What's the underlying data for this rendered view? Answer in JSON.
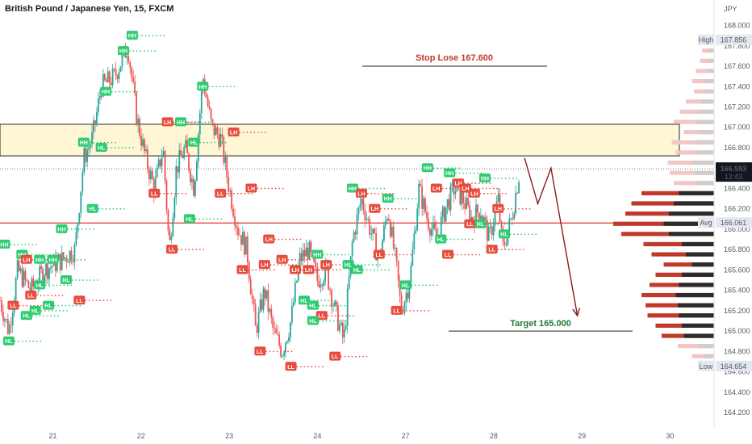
{
  "header": {
    "title": "British Pound / Japanese Yen, 15, FXCM"
  },
  "axis": {
    "currency": "JPY"
  },
  "price_badge": {
    "price": "166.593",
    "countdown": "12:43"
  },
  "high_badge": {
    "label": "High",
    "value": "167.856"
  },
  "low_badge": {
    "label": "Low",
    "value": "164.654"
  },
  "avg_badge": {
    "label": "Avg",
    "value": "166.061"
  },
  "annotations": {
    "stop_loss": "Stop Lose 167.600",
    "target": "Target 165.000"
  },
  "colors": {
    "up": "#26a69a",
    "down": "#ef5350",
    "hh_hl": "#2ecc71",
    "lh_ll": "#e74c3c",
    "zone_fill": "#fff6d5",
    "stop_line": "#c0392b",
    "target_text": "#1e7b34",
    "arrow": "#8b1a1a",
    "vp_dark": "#2b2b2b",
    "vp_red": "#c0392b",
    "vp_light": "#f3c6c6",
    "vp_gray": "#cccccc"
  },
  "chart_data": {
    "type": "candlestick",
    "symbol": "GBP/JPY",
    "timeframe": "15",
    "ylim": [
      164.05,
      168.25
    ],
    "y_ticks": [
      164.2,
      164.4,
      164.6,
      164.8,
      165.0,
      165.2,
      165.4,
      165.6,
      165.8,
      166.0,
      166.2,
      166.4,
      166.6,
      166.8,
      167.0,
      167.2,
      167.4,
      167.6,
      167.8,
      168.0
    ],
    "x_ticks": [
      "21",
      "22",
      "23",
      "24",
      "27",
      "28",
      "29",
      "30"
    ],
    "x_tick_days": [
      0.6,
      1.6,
      2.6,
      3.6,
      4.6,
      5.6,
      6.6,
      7.6
    ],
    "x_range_days": [
      0,
      8.1
    ],
    "price_path": [
      [
        0.0,
        165.3
      ],
      [
        0.1,
        165.0
      ],
      [
        0.2,
        165.6
      ],
      [
        0.35,
        165.4
      ],
      [
        0.5,
        165.6
      ],
      [
        0.7,
        165.7
      ],
      [
        0.85,
        165.8
      ],
      [
        0.95,
        166.7
      ],
      [
        1.05,
        166.9
      ],
      [
        1.15,
        167.4
      ],
      [
        1.3,
        167.5
      ],
      [
        1.45,
        167.8
      ],
      [
        1.55,
        167.1
      ],
      [
        1.65,
        166.7
      ],
      [
        1.75,
        166.4
      ],
      [
        1.85,
        166.8
      ],
      [
        1.92,
        165.8
      ],
      [
        2.0,
        166.6
      ],
      [
        2.1,
        166.8
      ],
      [
        2.2,
        166.4
      ],
      [
        2.3,
        167.5
      ],
      [
        2.4,
        167.0
      ],
      [
        2.5,
        166.9
      ],
      [
        2.6,
        166.4
      ],
      [
        2.7,
        166.0
      ],
      [
        2.8,
        165.8
      ],
      [
        2.9,
        165.0
      ],
      [
        3.0,
        165.4
      ],
      [
        3.1,
        165.0
      ],
      [
        3.2,
        164.8
      ],
      [
        3.3,
        165.1
      ],
      [
        3.4,
        165.7
      ],
      [
        3.5,
        165.8
      ],
      [
        3.6,
        165.5
      ],
      [
        3.7,
        165.6
      ],
      [
        3.8,
        165.2
      ],
      [
        3.9,
        164.9
      ],
      [
        4.0,
        165.9
      ],
      [
        4.1,
        166.3
      ],
      [
        4.2,
        166.0
      ],
      [
        4.3,
        165.7
      ],
      [
        4.4,
        166.2
      ],
      [
        4.5,
        165.6
      ],
      [
        4.55,
        165.2
      ],
      [
        4.65,
        165.5
      ],
      [
        4.75,
        166.4
      ],
      [
        4.85,
        166.1
      ],
      [
        4.95,
        165.9
      ],
      [
        5.05,
        166.2
      ],
      [
        5.15,
        166.4
      ],
      [
        5.25,
        166.3
      ],
      [
        5.35,
        166.1
      ],
      [
        5.45,
        166.2
      ],
      [
        5.55,
        165.9
      ],
      [
        5.65,
        166.3
      ],
      [
        5.7,
        165.8
      ],
      [
        5.8,
        166.1
      ],
      [
        5.9,
        166.6
      ]
    ],
    "projection": [
      [
        5.95,
        166.7
      ],
      [
        6.1,
        166.25
      ],
      [
        6.25,
        166.6
      ],
      [
        6.55,
        165.15
      ]
    ],
    "swing_labels": [
      {
        "t": "HH",
        "d": 0.05,
        "p": 165.85
      },
      {
        "t": "HL",
        "d": 0.1,
        "p": 164.9
      },
      {
        "t": "HH",
        "d": 0.25,
        "p": 165.75
      },
      {
        "t": "LL",
        "d": 0.15,
        "p": 165.25
      },
      {
        "t": "LH",
        "d": 0.3,
        "p": 165.7
      },
      {
        "t": "HL",
        "d": 0.3,
        "p": 165.15
      },
      {
        "t": "LL",
        "d": 0.35,
        "p": 165.35
      },
      {
        "t": "HL",
        "d": 0.4,
        "p": 165.2
      },
      {
        "t": "HH",
        "d": 0.45,
        "p": 165.7
      },
      {
        "t": "HL",
        "d": 0.45,
        "p": 165.45
      },
      {
        "t": "HL",
        "d": 0.55,
        "p": 165.25
      },
      {
        "t": "HH",
        "d": 0.7,
        "p": 166.0
      },
      {
        "t": "HL",
        "d": 0.75,
        "p": 165.5
      },
      {
        "t": "HH",
        "d": 0.6,
        "p": 165.7
      },
      {
        "t": "LL",
        "d": 0.9,
        "p": 165.3
      },
      {
        "t": "HH",
        "d": 0.95,
        "p": 166.85
      },
      {
        "t": "HL",
        "d": 1.05,
        "p": 166.2
      },
      {
        "t": "HL",
        "d": 1.15,
        "p": 166.8
      },
      {
        "t": "HH",
        "d": 1.2,
        "p": 167.35
      },
      {
        "t": "HH",
        "d": 1.4,
        "p": 167.75
      },
      {
        "t": "HH",
        "d": 1.5,
        "p": 167.9
      },
      {
        "t": "LH",
        "d": 1.9,
        "p": 167.05
      },
      {
        "t": "LL",
        "d": 1.75,
        "p": 166.35
      },
      {
        "t": "LL",
        "d": 1.95,
        "p": 165.8
      },
      {
        "t": "HH",
        "d": 2.05,
        "p": 167.05
      },
      {
        "t": "HL",
        "d": 2.15,
        "p": 166.1
      },
      {
        "t": "HH",
        "d": 2.3,
        "p": 167.4
      },
      {
        "t": "HL",
        "d": 2.2,
        "p": 166.85
      },
      {
        "t": "LH",
        "d": 2.65,
        "p": 166.95
      },
      {
        "t": "LL",
        "d": 2.5,
        "p": 166.35
      },
      {
        "t": "LH",
        "d": 2.85,
        "p": 166.4
      },
      {
        "t": "LL",
        "d": 2.75,
        "p": 165.6
      },
      {
        "t": "LH",
        "d": 3.05,
        "p": 165.9
      },
      {
        "t": "LH",
        "d": 3.0,
        "p": 165.65
      },
      {
        "t": "LL",
        "d": 2.95,
        "p": 164.8
      },
      {
        "t": "LH",
        "d": 3.2,
        "p": 165.7
      },
      {
        "t": "LL",
        "d": 3.3,
        "p": 164.65
      },
      {
        "t": "LH",
        "d": 3.35,
        "p": 165.6
      },
      {
        "t": "HL",
        "d": 3.45,
        "p": 165.3
      },
      {
        "t": "LH",
        "d": 3.5,
        "p": 165.6
      },
      {
        "t": "HL",
        "d": 3.55,
        "p": 165.25
      },
      {
        "t": "HH",
        "d": 3.6,
        "p": 165.75
      },
      {
        "t": "LH",
        "d": 3.7,
        "p": 165.65
      },
      {
        "t": "LL",
        "d": 3.65,
        "p": 165.15
      },
      {
        "t": "HL",
        "d": 3.55,
        "p": 165.1
      },
      {
        "t": "LL",
        "d": 3.8,
        "p": 164.75
      },
      {
        "t": "HL",
        "d": 3.95,
        "p": 165.65
      },
      {
        "t": "HH",
        "d": 4.0,
        "p": 166.4
      },
      {
        "t": "LH",
        "d": 4.1,
        "p": 166.35
      },
      {
        "t": "HL",
        "d": 4.05,
        "p": 165.6
      },
      {
        "t": "LH",
        "d": 4.25,
        "p": 166.2
      },
      {
        "t": "LL",
        "d": 4.3,
        "p": 165.75
      },
      {
        "t": "HH",
        "d": 4.4,
        "p": 166.3
      },
      {
        "t": "LL",
        "d": 4.5,
        "p": 165.2
      },
      {
        "t": "HL",
        "d": 4.6,
        "p": 165.45
      },
      {
        "t": "HH",
        "d": 4.85,
        "p": 166.6
      },
      {
        "t": "LH",
        "d": 4.95,
        "p": 166.4
      },
      {
        "t": "HL",
        "d": 5.0,
        "p": 165.9
      },
      {
        "t": "LL",
        "d": 5.08,
        "p": 165.75
      },
      {
        "t": "HH",
        "d": 5.1,
        "p": 166.55
      },
      {
        "t": "LH",
        "d": 5.2,
        "p": 166.45
      },
      {
        "t": "LH",
        "d": 5.28,
        "p": 166.4
      },
      {
        "t": "LL",
        "d": 5.33,
        "p": 166.05
      },
      {
        "t": "LH",
        "d": 5.38,
        "p": 166.35
      },
      {
        "t": "HH",
        "d": 5.5,
        "p": 166.5
      },
      {
        "t": "HL",
        "d": 5.45,
        "p": 166.05
      },
      {
        "t": "LL",
        "d": 5.58,
        "p": 165.8
      },
      {
        "t": "LH",
        "d": 5.65,
        "p": 166.2
      },
      {
        "t": "HL",
        "d": 5.72,
        "p": 165.95
      }
    ],
    "horizontal_lines": {
      "stop_loss": 167.6,
      "target": 165.0,
      "avg": 166.061,
      "current": 166.593,
      "zone": [
        166.72,
        167.03
      ]
    },
    "volume_profile": [
      [
        167.85,
        0.1,
        0.0
      ],
      [
        167.75,
        0.12,
        0.0
      ],
      [
        167.65,
        0.14,
        0.0
      ],
      [
        167.55,
        0.18,
        0.0
      ],
      [
        167.45,
        0.22,
        0.0
      ],
      [
        167.35,
        0.2,
        0.0
      ],
      [
        167.25,
        0.28,
        0.0
      ],
      [
        167.15,
        0.34,
        0.0
      ],
      [
        167.05,
        0.4,
        0.0
      ],
      [
        166.95,
        0.3,
        0.0
      ],
      [
        166.85,
        0.42,
        0.0
      ],
      [
        166.75,
        0.38,
        0.0
      ],
      [
        166.65,
        0.46,
        0.0
      ],
      [
        166.55,
        0.44,
        0.0
      ],
      [
        166.45,
        0.4,
        0.0
      ],
      [
        166.35,
        0.72,
        0.35
      ],
      [
        166.25,
        0.82,
        0.4
      ],
      [
        166.15,
        0.88,
        0.45
      ],
      [
        166.05,
        1.0,
        0.5
      ],
      [
        165.95,
        0.92,
        0.45
      ],
      [
        165.85,
        0.7,
        0.32
      ],
      [
        165.75,
        0.62,
        0.28
      ],
      [
        165.65,
        0.5,
        0.22
      ],
      [
        165.55,
        0.58,
        0.32
      ],
      [
        165.45,
        0.64,
        0.35
      ],
      [
        165.35,
        0.72,
        0.38
      ],
      [
        165.25,
        0.68,
        0.36
      ],
      [
        165.15,
        0.66,
        0.35
      ],
      [
        165.05,
        0.58,
        0.32
      ],
      [
        164.95,
        0.52,
        0.3
      ],
      [
        164.85,
        0.36,
        0.0
      ],
      [
        164.75,
        0.22,
        0.0
      ],
      [
        164.65,
        0.14,
        0.0
      ]
    ]
  }
}
